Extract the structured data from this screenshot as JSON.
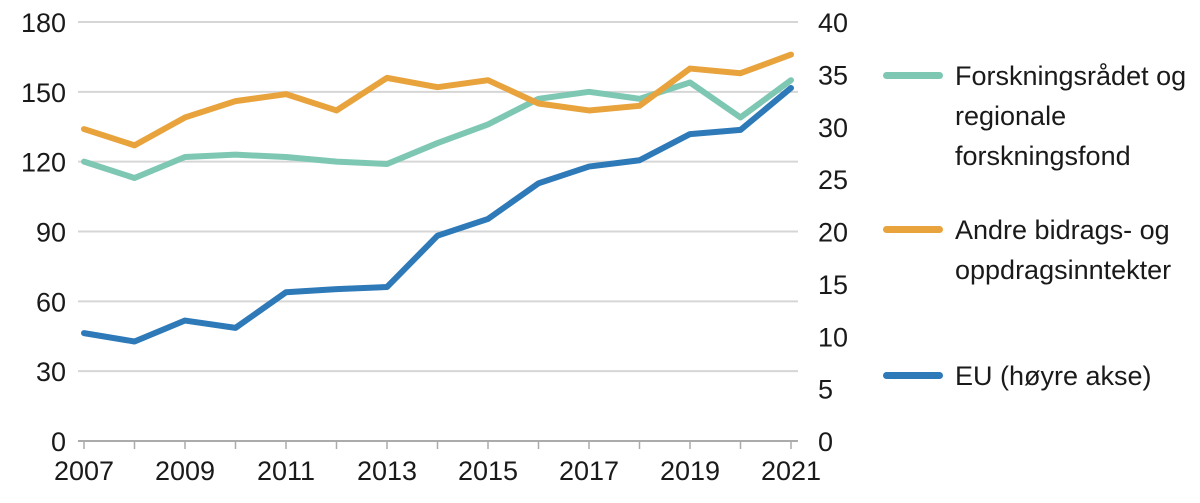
{
  "chart_data": {
    "type": "line",
    "title": "",
    "x": [
      2007,
      2008,
      2009,
      2010,
      2011,
      2012,
      2013,
      2014,
      2015,
      2016,
      2017,
      2018,
      2019,
      2020,
      2021
    ],
    "x_tick_labels": [
      "2007",
      "2009",
      "2011",
      "2013",
      "2015",
      "2017",
      "2019",
      "2021"
    ],
    "left_axis": {
      "range": [
        0,
        180
      ],
      "ticks": [
        0,
        30,
        60,
        90,
        120,
        150,
        180
      ]
    },
    "right_axis": {
      "range": [
        0,
        40
      ],
      "ticks": [
        0,
        5,
        10,
        15,
        20,
        25,
        30,
        35,
        40
      ]
    },
    "grid": "horizontal",
    "legend_position": "right",
    "series": [
      {
        "key": "forskningsradet",
        "name": "Forskningsrådet og regionale forskningsfond",
        "axis": "left",
        "color": "#7EC8B3",
        "values": [
          120,
          113,
          122,
          123,
          122,
          120,
          119,
          128,
          136,
          147,
          150,
          147,
          154,
          139,
          155
        ]
      },
      {
        "key": "andre-bidrag",
        "name": "Andre bidrags- og oppdragsinntekter",
        "axis": "left",
        "color": "#E8A33C",
        "values": [
          134,
          127,
          139,
          146,
          149,
          142,
          156,
          152,
          155,
          145,
          142,
          144,
          160,
          158,
          166
        ]
      },
      {
        "key": "eu",
        "name": "EU (høyre akse)",
        "axis": "right",
        "color": "#2E79B8",
        "values": [
          10.3,
          9.5,
          11.5,
          10.8,
          14.2,
          14.5,
          14.7,
          19.6,
          21.2,
          24.6,
          26.2,
          26.8,
          29.3,
          29.7,
          33.7
        ]
      }
    ]
  },
  "colors": {
    "grid": "#D6D6D6",
    "axis": "#ABABAB",
    "text": "#1A1A1A",
    "background": "#FFFFFF"
  }
}
